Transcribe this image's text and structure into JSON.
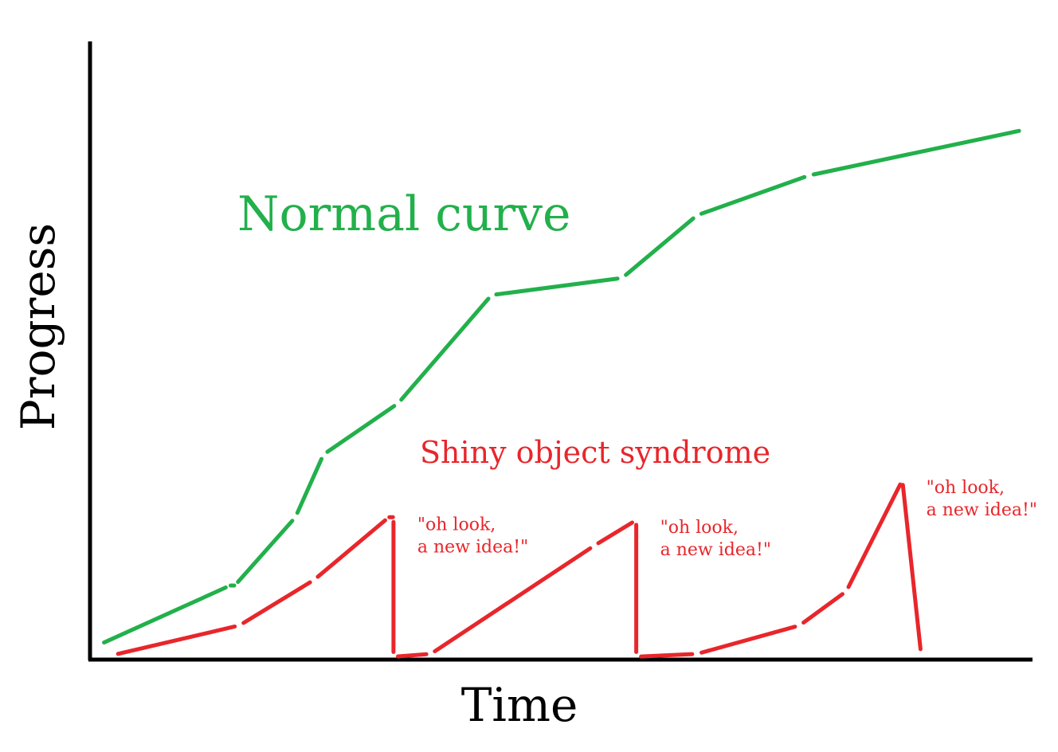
{
  "chart_data": {
    "type": "line",
    "title": "",
    "xlabel": "Time",
    "ylabel": "Progress",
    "xlim": [
      0,
      100
    ],
    "ylim": [
      0,
      100
    ],
    "grid": false,
    "series": [
      {
        "name": "Normal curve",
        "color": "#22b04b",
        "points": [
          [
            1.5,
            3
          ],
          [
            15,
            13
          ],
          [
            15.5,
            13
          ],
          [
            22,
            25
          ],
          [
            25,
            36
          ],
          [
            33,
            45
          ],
          [
            43,
            64
          ],
          [
            57,
            67
          ],
          [
            65,
            78
          ],
          [
            77,
            85
          ],
          [
            100,
            93
          ]
        ]
      },
      {
        "name": "Shiny object syndrome",
        "color": "#e8262b",
        "points": [
          [
            3,
            1
          ],
          [
            16,
            6
          ],
          [
            24,
            14
          ],
          [
            32,
            25
          ],
          [
            32.5,
            25
          ],
          [
            32.5,
            0.5
          ],
          [
            36.5,
            1
          ],
          [
            54,
            20
          ],
          [
            58.5,
            24.5
          ],
          [
            58.5,
            0.5
          ],
          [
            65,
            1
          ],
          [
            76,
            6
          ],
          [
            81,
            12
          ],
          [
            87,
            31.5
          ],
          [
            89,
            1
          ]
        ]
      }
    ],
    "annotations": [
      {
        "text": [
          "\"oh look,",
          "a new idea!\""
        ],
        "x": 32.5,
        "y": 25,
        "color": "#e8262b"
      },
      {
        "text": [
          "\"oh look,",
          "a new idea!\""
        ],
        "x": 58.5,
        "y": 24.5,
        "color": "#e8262b"
      },
      {
        "text": [
          "\"oh look,",
          "a new idea!\""
        ],
        "x": 87,
        "y": 31.5,
        "color": "#e8262b"
      }
    ]
  }
}
